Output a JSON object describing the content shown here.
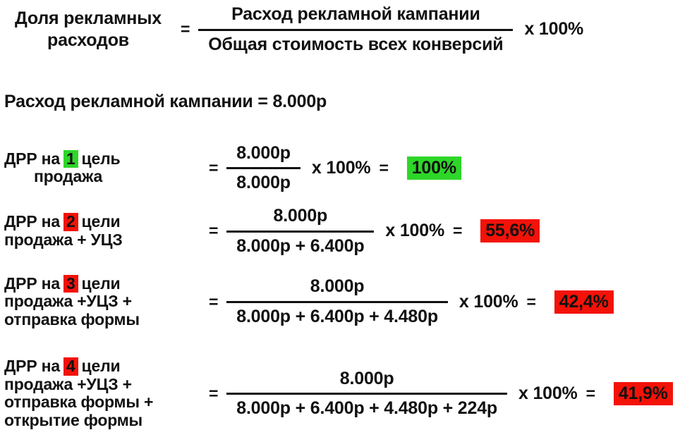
{
  "colors": {
    "highlight_green": "#2ed629",
    "highlight_red": "#f31208",
    "text": "#111111",
    "background": "#ffffff"
  },
  "symbols": {
    "equals": "=",
    "times": "x 100%"
  },
  "definition": {
    "lhs_line1": "Доля рекламных",
    "lhs_line2": "расходов",
    "numerator": "Расход рекламной кампании",
    "denominator": "Общая стоимость всех конверсий"
  },
  "given": "Расход рекламной кампании = 8.000р",
  "rows": [
    {
      "label_prefix": "ДРР на",
      "goal_number": "1",
      "label_suffix": "цель",
      "label_line2": "продажа",
      "label_line3": "",
      "label_line4": "",
      "numerator": "8.000р",
      "denominator": "8.000р",
      "result": "100%",
      "highlight": "green"
    },
    {
      "label_prefix": "ДРР на",
      "goal_number": "2",
      "label_suffix": "цели",
      "label_line2": "продажа + УЦЗ",
      "label_line3": "",
      "label_line4": "",
      "numerator": "8.000р",
      "denominator": "8.000р + 6.400р",
      "result": "55,6%",
      "highlight": "red"
    },
    {
      "label_prefix": "ДРР на",
      "goal_number": "3",
      "label_suffix": "цели",
      "label_line2": "продажа +УЦЗ +",
      "label_line3": "отправка формы",
      "label_line4": "",
      "numerator": "8.000р",
      "denominator": "8.000р + 6.400р + 4.480р",
      "result": "42,4%",
      "highlight": "red"
    },
    {
      "label_prefix": "ДРР на",
      "goal_number": "4",
      "label_suffix": "цели",
      "label_line2": "продажа +УЦЗ +",
      "label_line3": "отправка формы +",
      "label_line4": "открытие формы",
      "numerator": "8.000р",
      "denominator": "8.000р + 6.400р + 4.480р + 224р",
      "result": "41,9%",
      "highlight": "red"
    }
  ]
}
